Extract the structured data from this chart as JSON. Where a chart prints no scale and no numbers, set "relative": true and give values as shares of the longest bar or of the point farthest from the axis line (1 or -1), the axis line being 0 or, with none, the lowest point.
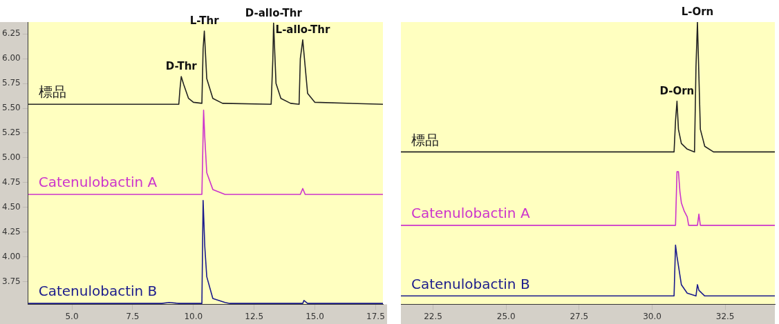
{
  "chart_data": [
    {
      "type": "line",
      "xlim": [
        3.2,
        17.8
      ],
      "ylim": [
        3.52,
        6.37
      ],
      "xticks": [
        {
          "value": 5,
          "label": "5.0"
        },
        {
          "value": 7.5,
          "label": "7.5"
        },
        {
          "value": 10,
          "label": "10.0"
        },
        {
          "value": 12.5,
          "label": "12.5"
        },
        {
          "value": 15,
          "label": "15.0"
        },
        {
          "value": 17.5,
          "label": "17.5"
        }
      ],
      "yticks": [
        3.75,
        {
          "value": 4,
          "label": "4.00"
        },
        4.25,
        {
          "value": 4.5,
          "label": "4.50"
        },
        4.75,
        {
          "value": 5,
          "label": "5.00"
        },
        5.25,
        {
          "value": 5.5,
          "label": "5.50"
        },
        5.75,
        {
          "value": 6,
          "label": "6.00"
        },
        6.25
      ],
      "grid": false,
      "legend": false,
      "marker": "none",
      "line_style": "solid",
      "series": [
        {
          "name": "標品",
          "color": "#222222",
          "x": [
            3.2,
            9.4,
            9.45,
            9.5,
            9.6,
            9.8,
            10.0,
            10.35,
            10.4,
            10.45,
            10.55,
            10.8,
            11.2,
            13.2,
            13.27,
            13.3,
            13.4,
            13.6,
            14.0,
            14.35,
            14.4,
            14.5,
            14.7,
            15.0,
            17.8
          ],
          "values": [
            5.54,
            5.54,
            5.7,
            5.82,
            5.74,
            5.6,
            5.56,
            5.55,
            6.1,
            6.28,
            5.8,
            5.6,
            5.55,
            5.54,
            6.0,
            6.36,
            5.75,
            5.6,
            5.55,
            5.54,
            6.0,
            6.19,
            5.65,
            5.56,
            5.54
          ]
        },
        {
          "name": "Catenulobactin A",
          "color": "#cc33cc",
          "x": [
            3.2,
            10.35,
            10.42,
            10.47,
            10.55,
            10.8,
            11.3,
            14.4,
            14.5,
            14.6,
            17.8
          ],
          "values": [
            4.63,
            4.63,
            5.48,
            5.2,
            4.85,
            4.68,
            4.63,
            4.63,
            4.69,
            4.63,
            4.63
          ]
        },
        {
          "name": "Catenulobactin B",
          "color": "#1a1a8c",
          "x": [
            3.2,
            8.7,
            9.0,
            9.4,
            10.35,
            10.4,
            10.47,
            10.55,
            10.8,
            11.3,
            11.5,
            14.5,
            14.55,
            14.7,
            17.8
          ],
          "values": [
            3.53,
            3.53,
            3.54,
            3.53,
            3.53,
            4.57,
            4.1,
            3.8,
            3.58,
            3.54,
            3.53,
            3.53,
            3.56,
            3.53,
            3.53
          ]
        }
      ],
      "annotations": [
        {
          "text": "D-Thr",
          "x": 9.5,
          "y": 5.82
        },
        {
          "text": "L-Thr",
          "x": 10.45,
          "y": 6.28
        },
        {
          "text": "D-allo-Thr",
          "x": 13.3,
          "y": 6.36
        },
        {
          "text": "L-allo-Thr",
          "x": 14.5,
          "y": 6.19
        }
      ]
    },
    {
      "type": "line",
      "relative": true,
      "xlim": [
        21.4,
        34.2
      ],
      "xticks": [
        22.5,
        {
          "value": 25,
          "label": "25.0"
        },
        27.5,
        {
          "value": 30,
          "label": "30.0"
        },
        32.5
      ],
      "tick_labels": "x",
      "grid": false,
      "legend": false,
      "marker": "none",
      "line_style": "solid",
      "series": [
        {
          "name": "標品",
          "color": "#222222",
          "x": [
            21.4,
            30.75,
            30.8,
            30.85,
            30.9,
            31.0,
            31.2,
            31.45,
            31.5,
            31.55,
            31.65,
            31.8,
            32.1,
            34.2
          ],
          "values": [
            0.54,
            0.54,
            0.65,
            0.72,
            0.62,
            0.57,
            0.55,
            0.54,
            0.84,
            1.0,
            0.62,
            0.56,
            0.54,
            0.54
          ]
        },
        {
          "name": "Catenulobactin A",
          "color": "#cc33cc",
          "x": [
            21.4,
            30.8,
            30.85,
            30.9,
            30.95,
            31.0,
            31.1,
            31.2,
            31.25,
            31.55,
            31.6,
            31.65,
            34.2
          ],
          "values": [
            0.28,
            0.28,
            0.47,
            0.47,
            0.4,
            0.36,
            0.33,
            0.31,
            0.28,
            0.28,
            0.32,
            0.28,
            0.28
          ]
        },
        {
          "name": "Catenulobactin B",
          "color": "#1a1a8c",
          "x": [
            21.4,
            30.75,
            30.8,
            30.85,
            31.0,
            31.2,
            31.5,
            31.55,
            31.6,
            31.8,
            34.2
          ],
          "values": [
            0.03,
            0.03,
            0.21,
            0.17,
            0.07,
            0.04,
            0.03,
            0.07,
            0.05,
            0.03,
            0.03
          ]
        }
      ],
      "annotations": [
        {
          "text": "D-Orn",
          "x": 30.85,
          "y": 0.72
        },
        {
          "text": "L-Orn",
          "x": 31.55,
          "y": 1.0
        }
      ]
    }
  ]
}
